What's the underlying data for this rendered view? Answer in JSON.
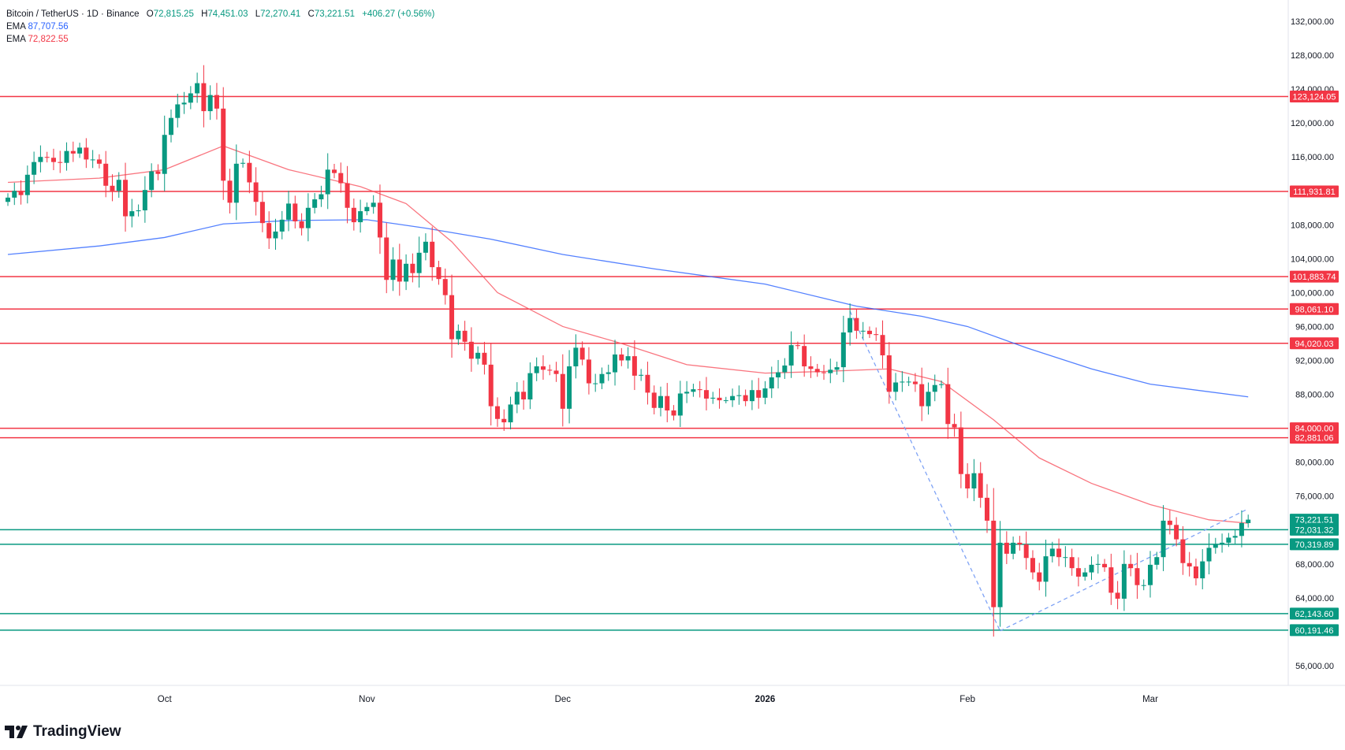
{
  "legend": {
    "symbol": "Bitcoin / TetherUS · 1D · Binance",
    "open_label": "O",
    "open": "72,815.25",
    "high_label": "H",
    "high": "74,451.03",
    "low_label": "L",
    "low": "72,270.41",
    "close_label": "C",
    "close": "73,221.51",
    "change": "+406.27 (+0.56%)",
    "ema1_label": "EMA",
    "ema1_value": "87,707.56",
    "ema2_label": "EMA",
    "ema2_value": "72,822.55"
  },
  "brand": "TradingView",
  "colors": {
    "up": "#089981",
    "down": "#f23645",
    "ema_slow": "#2962ff",
    "ema_fast": "#f7525f",
    "support": "#089981",
    "resistance": "#f23645"
  },
  "chart_data": {
    "type": "candlestick",
    "title": "Bitcoin / TetherUS · 1D · Binance",
    "ylim": [
      54000,
      133500
    ],
    "y_ticks": [
      "132,000.00",
      "128,000.00",
      "124,000.00",
      "120,000.00",
      "116,000.00",
      "108,000.00",
      "104,000.00",
      "100,000.00",
      "96,000.00",
      "92,000.00",
      "88,000.00",
      "80,000.00",
      "76,000.00",
      "68,000.00",
      "64,000.00",
      "56,000.00"
    ],
    "x_ticks": [
      {
        "label": "Oct",
        "day": 24
      },
      {
        "label": "Nov",
        "day": 55
      },
      {
        "label": "Dec",
        "day": 85
      },
      {
        "label": "2026",
        "day": 116
      },
      {
        "label": "Feb",
        "day": 147
      },
      {
        "label": "Mar",
        "day": 175
      }
    ],
    "closes": [
      111.2,
      112,
      111.5,
      113.9,
      115.4,
      116,
      115.9,
      115.4,
      115.3,
      116.7,
      116.4,
      117.1,
      115.7,
      115.7,
      115.2,
      112.6,
      112,
      113.3,
      109,
      109.6,
      109.7,
      112.1,
      114.3,
      114.0,
      118.6,
      120.6,
      122.2,
      122.4,
      123.5,
      124.7,
      121.4,
      123.3,
      121.7,
      113.2,
      110.6,
      115.2,
      115.3,
      113,
      110.7,
      108.2,
      106.4,
      107.2,
      108.6,
      110.5,
      108.4,
      107.6,
      110,
      111,
      111.6,
      114.5,
      114.1,
      112.9,
      110,
      108.3,
      109.6,
      110.1,
      110.6,
      106.5,
      101.5,
      103.9,
      101.3,
      103.4,
      102.3,
      104.7,
      106,
      103,
      101.6,
      99.7,
      94.5,
      95.5,
      94.2,
      92.2,
      92.9,
      91.5,
      86.6,
      85.1,
      84.7,
      86.8,
      88.3,
      87.4,
      90.5,
      91.3,
      90.9,
      90.8,
      90.4,
      86.3,
      91.3,
      93.5,
      92.1,
      89.3,
      89.3,
      90.4,
      90.6,
      92.7,
      92.0,
      92.5,
      90.2,
      90.3,
      88.2,
      86.4,
      87.8,
      86.1,
      85.5,
      88.1,
      88.3,
      88.6,
      88.5,
      87.5,
      87.6,
      87.3,
      87.3,
      87.8,
      87.9,
      87.2,
      88.5,
      87.6,
      88.7,
      90,
      90.6,
      91.4,
      93.8,
      93.7,
      91.3,
      91,
      90.6,
      90.5,
      90.9,
      91.2,
      95.3,
      97,
      95.5,
      95.5,
      95.1,
      95,
      92.6,
      88.3,
      89.4,
      89.5,
      89.5,
      89.2,
      86.6,
      88.3,
      89.1,
      89.2,
      84.5,
      84.1,
      78.6,
      76.9,
      78.7,
      75.8,
      73.1,
      62.9,
      70.5,
      69.2,
      70.5,
      70.3,
      68.7,
      67,
      65.9,
      68.9,
      69.8,
      68.8,
      68.8,
      67.5,
      66.5,
      67,
      67.9,
      68,
      67.6,
      64.6,
      63.9,
      68,
      67.5,
      65.5,
      65.5,
      67.9,
      68.8,
      73.1,
      72.6,
      70.9,
      68.1,
      67.7,
      66.3,
      68.3,
      69.9,
      70.3,
      70.5,
      71.1,
      71.3,
      72.815,
      73.22151
    ],
    "closes_unit": "thousand USDT",
    "ema_slow": [
      [
        0,
        104.5
      ],
      [
        14,
        105.5
      ],
      [
        24,
        106.5
      ],
      [
        33,
        108.1
      ],
      [
        43,
        108.5
      ],
      [
        55,
        108.6
      ],
      [
        64,
        107.6
      ],
      [
        74,
        106.3
      ],
      [
        85,
        104.5
      ],
      [
        99,
        102.8
      ],
      [
        116,
        101
      ],
      [
        130,
        98.4
      ],
      [
        140,
        97.2
      ],
      [
        147,
        96
      ],
      [
        156,
        93.5
      ],
      [
        166,
        91
      ],
      [
        175,
        89.2
      ],
      [
        190,
        87.7
      ]
    ],
    "ema_fast": [
      [
        0,
        113
      ],
      [
        14,
        113.5
      ],
      [
        24,
        114.5
      ],
      [
        33,
        117.3
      ],
      [
        43,
        114.5
      ],
      [
        54,
        112.5
      ],
      [
        61,
        110.5
      ],
      [
        68,
        106
      ],
      [
        75,
        100
      ],
      [
        85,
        96
      ],
      [
        94,
        94
      ],
      [
        104,
        91.5
      ],
      [
        116,
        90.5
      ],
      [
        125,
        90.7
      ],
      [
        135,
        91
      ],
      [
        143,
        89.5
      ],
      [
        151,
        85
      ],
      [
        158,
        80.5
      ],
      [
        166,
        77.5
      ],
      [
        175,
        75
      ],
      [
        184,
        73.2
      ],
      [
        190,
        72.8
      ]
    ],
    "trendlines": [
      [
        [
          129,
          97.8
        ],
        [
          152,
          60.1
        ]
      ],
      [
        [
          152,
          60.1
        ],
        [
          190,
          74.5
        ]
      ]
    ],
    "levels": [
      {
        "value": 123124.05,
        "label": "123,124.05",
        "kind": "resistance"
      },
      {
        "value": 111931.81,
        "label": "111,931.81",
        "kind": "resistance"
      },
      {
        "value": 101883.74,
        "label": "101,883.74",
        "kind": "resistance"
      },
      {
        "value": 98061.1,
        "label": "98,061.10",
        "kind": "resistance"
      },
      {
        "value": 94020.03,
        "label": "94,020.03",
        "kind": "resistance"
      },
      {
        "value": 84000.0,
        "label": "84,000.00",
        "kind": "resistance"
      },
      {
        "value": 82881.06,
        "label": "82,881.06",
        "kind": "resistance"
      },
      {
        "value": 72031.32,
        "label": "72,031.32",
        "kind": "support"
      },
      {
        "value": 70319.89,
        "label": "70,319.89",
        "kind": "support"
      },
      {
        "value": 62143.6,
        "label": "62,143.60",
        "kind": "support"
      },
      {
        "value": 60191.46,
        "label": "60,191.46",
        "kind": "support"
      }
    ],
    "last_price": {
      "value": 73221.51,
      "label": "73,221.51"
    }
  }
}
